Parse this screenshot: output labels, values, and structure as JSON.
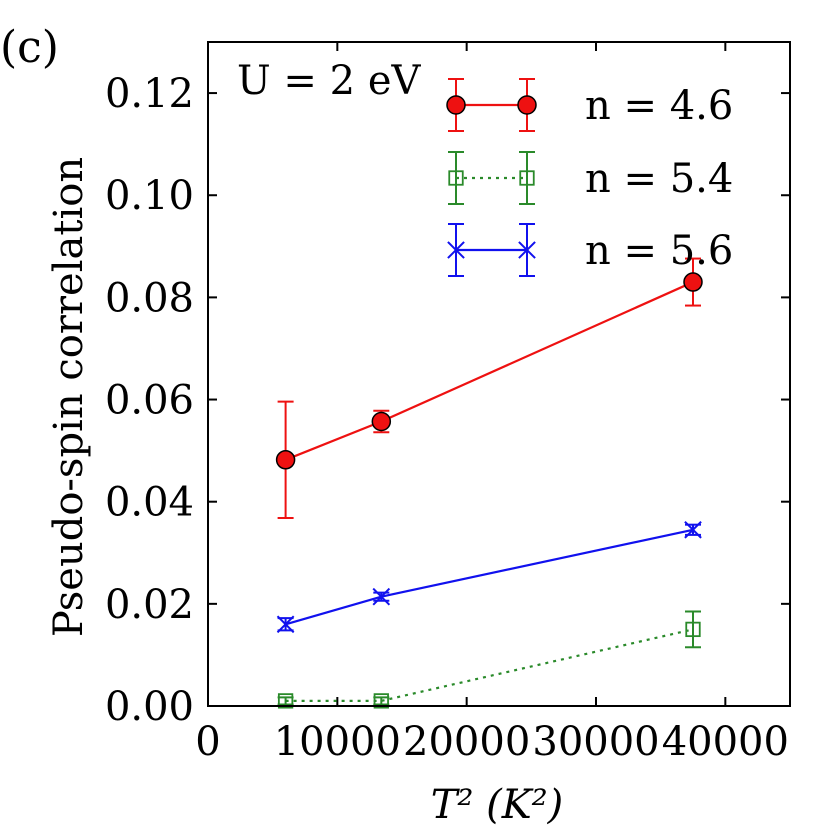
{
  "panel_label": "(c)",
  "chart_data": {
    "type": "line",
    "xlabel": "T² (K²)",
    "ylabel": "Pseudo-spin correlation",
    "annotation": "U = 2 eV",
    "xlim": [
      0,
      45000
    ],
    "ylim": [
      0.0,
      0.13
    ],
    "x_ticks": [
      0,
      10000,
      20000,
      30000,
      40000
    ],
    "x_tick_labels": [
      "0",
      "10000",
      "20000",
      "30000",
      "40000"
    ],
    "y_ticks": [
      0.0,
      0.02,
      0.04,
      0.06,
      0.08,
      0.1,
      0.12
    ],
    "y_tick_labels": [
      "0.00",
      "0.02",
      "0.04",
      "0.06",
      "0.08",
      "0.10",
      "0.12"
    ],
    "legend_position": "top-right",
    "series": [
      {
        "name": "n = 4.6",
        "color": "#ee1111",
        "marker": "circle",
        "line_style": "solid",
        "points": [
          {
            "x": 6000,
            "y": 0.0482,
            "err": 0.0114
          },
          {
            "x": 13400,
            "y": 0.0557,
            "err": 0.0021
          },
          {
            "x": 37500,
            "y": 0.083,
            "err": 0.0046
          }
        ]
      },
      {
        "name": "n = 5.4",
        "color": "#2a8a2a",
        "marker": "square",
        "line_style": "dotted",
        "points": [
          {
            "x": 6000,
            "y": 0.001,
            "err": 0.0007
          },
          {
            "x": 13400,
            "y": 0.001,
            "err": 0.0007
          },
          {
            "x": 37500,
            "y": 0.015,
            "err": 0.0035
          }
        ]
      },
      {
        "name": "n = 5.6",
        "color": "#1111ee",
        "marker": "x",
        "line_style": "solid",
        "points": [
          {
            "x": 6000,
            "y": 0.016,
            "err": 0.0012
          },
          {
            "x": 13400,
            "y": 0.0214,
            "err": 0.0008
          },
          {
            "x": 37500,
            "y": 0.0345,
            "err": 0.001
          }
        ]
      }
    ]
  }
}
